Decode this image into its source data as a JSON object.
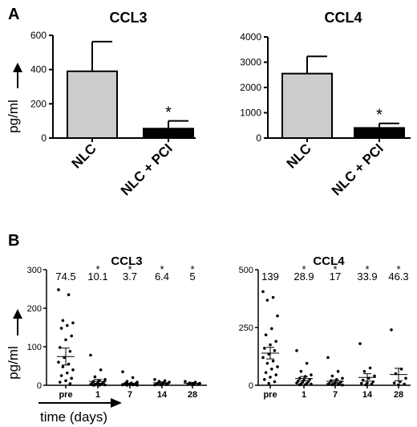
{
  "panel_labels": [
    "A",
    "B"
  ],
  "ylabel": "pg/ml",
  "time_label": "time (days)",
  "chart_data": [
    {
      "type": "bar",
      "title": "CCL3",
      "ylabel": "pg/ml",
      "categories": [
        "NLC",
        "NLC + PCI"
      ],
      "values": [
        390,
        55
      ],
      "errors": [
        173,
        45
      ],
      "colors": [
        "#cccccc",
        "#000000"
      ],
      "ylim": [
        0,
        600
      ],
      "yticks": [
        0,
        200,
        400,
        600
      ],
      "annotations": [
        {
          "category": "NLC + PCI",
          "text": "*"
        }
      ]
    },
    {
      "type": "bar",
      "title": "CCL4",
      "categories": [
        "NLC",
        "NLC + PCI"
      ],
      "values": [
        2550,
        400
      ],
      "errors": [
        680,
        180
      ],
      "colors": [
        "#cccccc",
        "#000000"
      ],
      "ylim": [
        0,
        4000
      ],
      "yticks": [
        0,
        1000,
        2000,
        3000,
        4000
      ],
      "annotations": [
        {
          "category": "NLC + PCI",
          "text": "*"
        }
      ]
    },
    {
      "type": "scatter",
      "title": "CCL3",
      "ylabel": "pg/ml",
      "xlabel": "time (days)",
      "categories": [
        "pre",
        "1",
        "7",
        "14",
        "28"
      ],
      "means": [
        74.5,
        10.1,
        3.7,
        6.4,
        5
      ],
      "mean_labels": [
        "74.5",
        "10.1",
        "3.7",
        "6.4",
        "5"
      ],
      "sem": [
        22,
        5,
        1.5,
        2.5,
        2.5
      ],
      "stars": [
        "",
        "*",
        "*",
        "*",
        "*"
      ],
      "ylim": [
        0,
        300
      ],
      "yticks": [
        0,
        100,
        200,
        300
      ],
      "points": [
        [
          248,
          235,
          168,
          162,
          155,
          148,
          128,
          118,
          98,
          88,
          72,
          60,
          55,
          48,
          40,
          32,
          25,
          18,
          12,
          8,
          4
        ],
        [
          78,
          40,
          22,
          15,
          12,
          10,
          8,
          6,
          5,
          4,
          3,
          2,
          2,
          1,
          1,
          0,
          0
        ],
        [
          35,
          20,
          10,
          8,
          6,
          5,
          4,
          3,
          3,
          2,
          2,
          1,
          1,
          0,
          0
        ],
        [
          15,
          12,
          10,
          8,
          6,
          5,
          4,
          3,
          2,
          2,
          1,
          1
        ],
        [
          10,
          8,
          6,
          5,
          4,
          3,
          2,
          1
        ]
      ]
    },
    {
      "type": "scatter",
      "title": "CCL4",
      "categories": [
        "pre",
        "1",
        "7",
        "14",
        "28"
      ],
      "means": [
        139,
        28.9,
        17,
        33.9,
        46.3
      ],
      "mean_labels": [
        "139",
        "28.9",
        "17",
        "33.9",
        "46.3"
      ],
      "sem": [
        25,
        9,
        6,
        16,
        27
      ],
      "stars": [
        "",
        "*",
        "*",
        "*",
        "*"
      ],
      "ylim": [
        0,
        500
      ],
      "yticks": [
        0,
        250,
        500
      ],
      "points": [
        [
          405,
          380,
          368,
          300,
          245,
          218,
          190,
          175,
          160,
          150,
          135,
          120,
          105,
          95,
          80,
          70,
          55,
          45,
          35,
          25,
          15,
          8
        ],
        [
          150,
          95,
          60,
          45,
          38,
          30,
          25,
          22,
          18,
          15,
          12,
          10,
          8,
          6,
          5,
          3,
          2
        ],
        [
          120,
          60,
          40,
          30,
          25,
          20,
          15,
          10,
          8,
          6,
          5,
          4,
          3,
          2,
          1
        ],
        [
          180,
          75,
          60,
          40,
          30,
          22,
          15,
          10,
          8,
          5,
          2
        ],
        [
          240,
          70,
          50,
          30,
          15,
          10,
          5,
          2
        ]
      ]
    }
  ]
}
